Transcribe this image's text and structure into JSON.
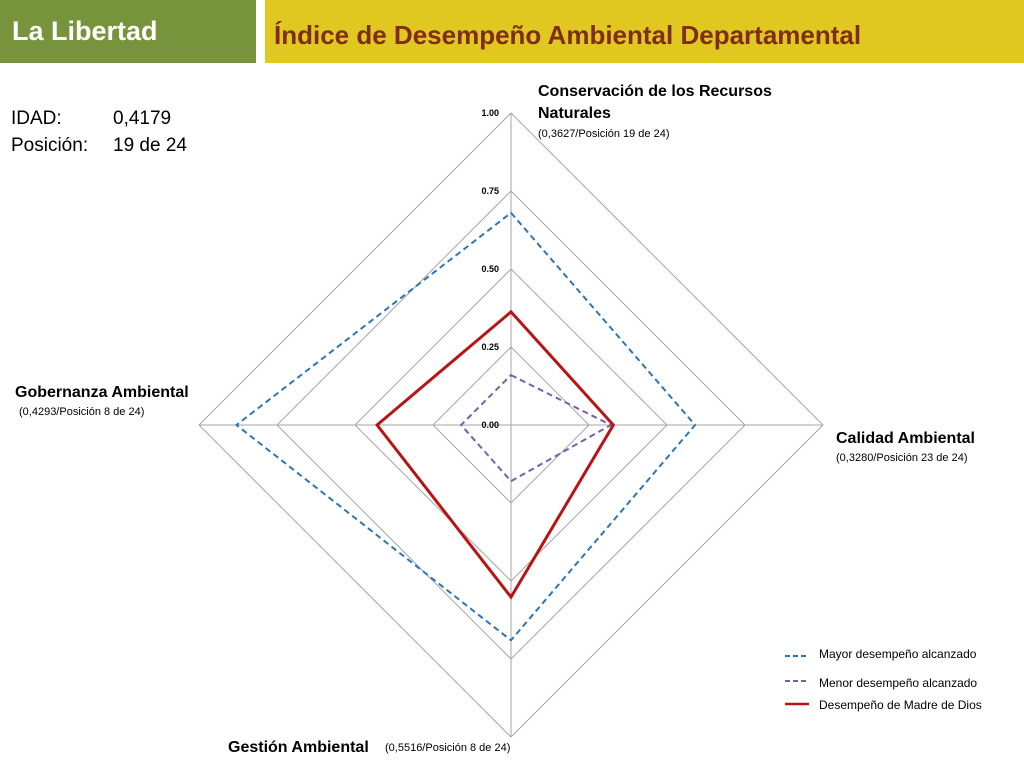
{
  "header": {
    "region": "La Libertad",
    "title": "Índice de Desempeño Ambiental Departamental"
  },
  "summary": {
    "idad_label": "IDAD:",
    "idad_value": "0,4179",
    "position_label": "Posición:",
    "position_value": "19 de 24"
  },
  "axes": [
    {
      "title": "Conservación de los Recursos",
      "title2": "Naturales",
      "sub": "(0,3627/Posición 19 de 24)"
    },
    {
      "title": "Calidad Ambiental",
      "sub": "(0,3280/Posición 23 de 24)"
    },
    {
      "title": "Gestión Ambiental",
      "sub": "(0,5516/Posición 8 de 24)"
    },
    {
      "title": "Gobernanza Ambiental",
      "sub": "(0,4293/Posición 8 de 24)"
    }
  ],
  "legend": [
    {
      "label": "Mayor desempeño alcanzado"
    },
    {
      "label": "Menor desempeño alcanzado"
    },
    {
      "label": "Desempeño de Madre de Dios"
    }
  ],
  "colors": {
    "max": "#2e75b6",
    "min": "#7e5ca8",
    "region": "#b81414",
    "grid": "#a6a6a6",
    "header_left": "#77933c",
    "header_right": "#e0c821",
    "title_text": "#7f2d16"
  },
  "chart_data": {
    "type": "radar",
    "categories": [
      "Conservación de los Recursos Naturales",
      "Calidad Ambiental",
      "Gestión Ambiental",
      "Gobernanza Ambiental"
    ],
    "rlim": [
      0,
      1
    ],
    "tick_labels": [
      "0.00",
      "0.25",
      "0.50",
      "0.75",
      "1.00"
    ],
    "ticks": [
      0,
      0.25,
      0.5,
      0.75,
      1
    ],
    "series": [
      {
        "name": "Mayor desempeño alcanzado",
        "values": [
          0.68,
          0.59,
          0.69,
          0.88
        ],
        "style": "dashed",
        "color": "#2e75b6"
      },
      {
        "name": "Menor desempeño alcanzado",
        "values": [
          0.16,
          0.32,
          0.18,
          0.16
        ],
        "style": "dashed",
        "color": "#7e5ca8"
      },
      {
        "name": "Desempeño de Madre de Dios",
        "values": [
          0.3627,
          0.328,
          0.5516,
          0.4293
        ],
        "style": "solid",
        "color": "#b81414"
      }
    ]
  }
}
